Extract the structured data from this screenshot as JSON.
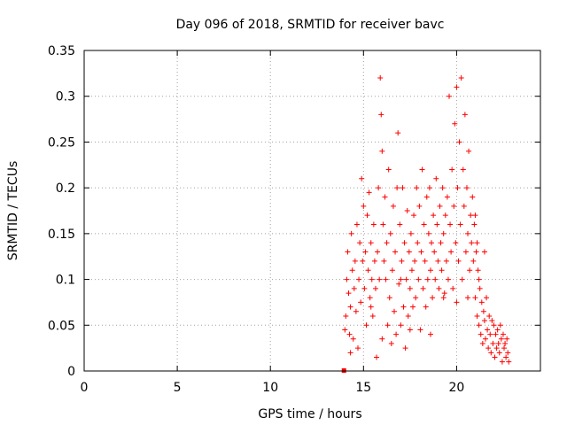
{
  "chart_data": {
    "type": "scatter",
    "title": "Day 096 of 2018, SRMTID for receiver bavc",
    "xlabel": "GPS time / hours",
    "ylabel": "SRMTID / TECUs",
    "xlim": [
      0,
      24.5
    ],
    "ylim": [
      0,
      0.35
    ],
    "x_ticks": [
      0,
      5,
      10,
      15,
      20
    ],
    "x_tick_labels": [
      "0",
      "5",
      "10",
      "15",
      "20"
    ],
    "y_ticks": [
      0,
      0.05,
      0.1,
      0.15,
      0.2,
      0.25,
      0.3,
      0.35
    ],
    "y_tick_labels": [
      "0",
      "0.05",
      "0.1",
      "0.15",
      "0.2",
      "0.25",
      "0.3",
      "0.35"
    ],
    "grid": true,
    "marker": "plus",
    "color": "#ff0000",
    "square_marker": {
      "x": 13.95,
      "y": 0.0
    },
    "series": [
      {
        "name": "SRMTID",
        "points": [
          [
            14.0,
            0.045
          ],
          [
            14.05,
            0.06
          ],
          [
            14.1,
            0.1
          ],
          [
            14.15,
            0.13
          ],
          [
            14.2,
            0.085
          ],
          [
            14.25,
            0.04
          ],
          [
            14.3,
            0.07
          ],
          [
            14.35,
            0.15
          ],
          [
            14.4,
            0.11
          ],
          [
            14.45,
            0.035
          ],
          [
            14.5,
            0.09
          ],
          [
            14.55,
            0.12
          ],
          [
            14.6,
            0.065
          ],
          [
            14.65,
            0.16
          ],
          [
            14.7,
            0.025
          ],
          [
            14.75,
            0.1
          ],
          [
            14.8,
            0.14
          ],
          [
            14.85,
            0.075
          ],
          [
            14.9,
            0.21
          ],
          [
            14.95,
            0.12
          ],
          [
            15.0,
            0.18
          ],
          [
            15.05,
            0.09
          ],
          [
            15.1,
            0.13
          ],
          [
            15.15,
            0.05
          ],
          [
            15.2,
            0.17
          ],
          [
            15.25,
            0.11
          ],
          [
            15.3,
            0.195
          ],
          [
            15.35,
            0.08
          ],
          [
            15.4,
            0.14
          ],
          [
            15.45,
            0.1
          ],
          [
            15.5,
            0.06
          ],
          [
            15.55,
            0.16
          ],
          [
            15.6,
            0.12
          ],
          [
            15.65,
            0.09
          ],
          [
            15.7,
            0.015
          ],
          [
            15.75,
            0.13
          ],
          [
            15.8,
            0.2
          ],
          [
            15.85,
            0.1
          ],
          [
            15.9,
            0.32
          ],
          [
            15.95,
            0.28
          ],
          [
            16.0,
            0.24
          ],
          [
            16.05,
            0.16
          ],
          [
            16.1,
            0.12
          ],
          [
            16.15,
            0.19
          ],
          [
            16.2,
            0.1
          ],
          [
            16.25,
            0.14
          ],
          [
            16.3,
            0.05
          ],
          [
            16.35,
            0.22
          ],
          [
            16.4,
            0.08
          ],
          [
            16.45,
            0.15
          ],
          [
            16.5,
            0.03
          ],
          [
            16.55,
            0.11
          ],
          [
            16.6,
            0.18
          ],
          [
            16.65,
            0.065
          ],
          [
            16.7,
            0.13
          ],
          [
            16.75,
            0.04
          ],
          [
            16.8,
            0.2
          ],
          [
            16.85,
            0.26
          ],
          [
            16.9,
            0.095
          ],
          [
            16.95,
            0.16
          ],
          [
            17.0,
            0.05
          ],
          [
            17.05,
            0.12
          ],
          [
            17.1,
            0.2
          ],
          [
            17.15,
            0.07
          ],
          [
            17.2,
            0.14
          ],
          [
            17.25,
            0.025
          ],
          [
            17.3,
            0.1
          ],
          [
            17.35,
            0.175
          ],
          [
            17.4,
            0.06
          ],
          [
            17.45,
            0.13
          ],
          [
            17.5,
            0.09
          ],
          [
            17.55,
            0.15
          ],
          [
            17.6,
            0.11
          ],
          [
            17.65,
            0.07
          ],
          [
            17.7,
            0.17
          ],
          [
            17.75,
            0.12
          ],
          [
            17.8,
            0.08
          ],
          [
            17.85,
            0.2
          ],
          [
            17.9,
            0.14
          ],
          [
            17.95,
            0.1
          ],
          [
            18.0,
            0.18
          ],
          [
            18.05,
            0.045
          ],
          [
            18.1,
            0.13
          ],
          [
            18.15,
            0.22
          ],
          [
            18.2,
            0.09
          ],
          [
            18.25,
            0.16
          ],
          [
            18.3,
            0.12
          ],
          [
            18.35,
            0.07
          ],
          [
            18.4,
            0.19
          ],
          [
            18.45,
            0.1
          ],
          [
            18.5,
            0.15
          ],
          [
            18.55,
            0.2
          ],
          [
            18.6,
            0.11
          ],
          [
            18.65,
            0.14
          ],
          [
            18.7,
            0.08
          ],
          [
            18.75,
            0.17
          ],
          [
            18.8,
            0.13
          ],
          [
            18.85,
            0.1
          ],
          [
            18.9,
            0.21
          ],
          [
            18.95,
            0.16
          ],
          [
            19.0,
            0.12
          ],
          [
            19.05,
            0.09
          ],
          [
            19.1,
            0.18
          ],
          [
            19.15,
            0.14
          ],
          [
            19.2,
            0.11
          ],
          [
            19.25,
            0.2
          ],
          [
            19.3,
            0.15
          ],
          [
            19.35,
            0.085
          ],
          [
            19.4,
            0.17
          ],
          [
            19.45,
            0.12
          ],
          [
            19.5,
            0.19
          ],
          [
            19.55,
            0.1
          ],
          [
            19.6,
            0.3
          ],
          [
            19.65,
            0.16
          ],
          [
            19.7,
            0.13
          ],
          [
            19.75,
            0.22
          ],
          [
            19.8,
            0.09
          ],
          [
            19.85,
            0.18
          ],
          [
            19.9,
            0.27
          ],
          [
            19.95,
            0.14
          ],
          [
            20.0,
            0.31
          ],
          [
            20.05,
            0.2
          ],
          [
            20.1,
            0.12
          ],
          [
            20.15,
            0.25
          ],
          [
            20.2,
            0.16
          ],
          [
            20.25,
            0.32
          ],
          [
            20.3,
            0.1
          ],
          [
            20.35,
            0.22
          ],
          [
            20.4,
            0.18
          ],
          [
            20.45,
            0.28
          ],
          [
            20.5,
            0.13
          ],
          [
            20.55,
            0.2
          ],
          [
            20.6,
            0.15
          ],
          [
            20.65,
            0.24
          ],
          [
            20.7,
            0.11
          ],
          [
            20.75,
            0.17
          ],
          [
            20.8,
            0.14
          ],
          [
            20.85,
            0.19
          ],
          [
            20.9,
            0.12
          ],
          [
            20.95,
            0.16
          ],
          [
            21.0,
            0.08
          ],
          [
            21.05,
            0.13
          ],
          [
            21.1,
            0.06
          ],
          [
            21.15,
            0.11
          ],
          [
            21.2,
            0.05
          ],
          [
            21.25,
            0.09
          ],
          [
            21.3,
            0.04
          ],
          [
            21.35,
            0.075
          ],
          [
            21.4,
            0.03
          ],
          [
            21.45,
            0.065
          ],
          [
            21.5,
            0.055
          ],
          [
            21.55,
            0.035
          ],
          [
            21.6,
            0.08
          ],
          [
            21.65,
            0.045
          ],
          [
            21.7,
            0.025
          ],
          [
            21.75,
            0.06
          ],
          [
            21.8,
            0.04
          ],
          [
            21.85,
            0.02
          ],
          [
            21.9,
            0.055
          ],
          [
            21.95,
            0.03
          ],
          [
            22.0,
            0.05
          ],
          [
            22.05,
            0.015
          ],
          [
            22.1,
            0.04
          ],
          [
            22.15,
            0.025
          ],
          [
            22.2,
            0.045
          ],
          [
            22.25,
            0.03
          ],
          [
            22.3,
            0.02
          ],
          [
            22.35,
            0.05
          ],
          [
            22.4,
            0.035
          ],
          [
            22.45,
            0.01
          ],
          [
            22.5,
            0.04
          ],
          [
            22.55,
            0.025
          ],
          [
            22.6,
            0.03
          ],
          [
            22.65,
            0.015
          ],
          [
            22.7,
            0.035
          ],
          [
            22.75,
            0.02
          ],
          [
            22.8,
            0.01
          ],
          [
            21.5,
            0.13
          ],
          [
            14.3,
            0.02
          ],
          [
            15.4,
            0.07
          ],
          [
            16.0,
            0.035
          ],
          [
            17.0,
            0.1
          ],
          [
            17.5,
            0.045
          ],
          [
            18.6,
            0.04
          ],
          [
            19.3,
            0.08
          ],
          [
            20.0,
            0.075
          ],
          [
            20.6,
            0.08
          ],
          [
            21.2,
            0.1
          ],
          [
            21.0,
            0.17
          ],
          [
            21.1,
            0.14
          ]
        ]
      }
    ]
  }
}
